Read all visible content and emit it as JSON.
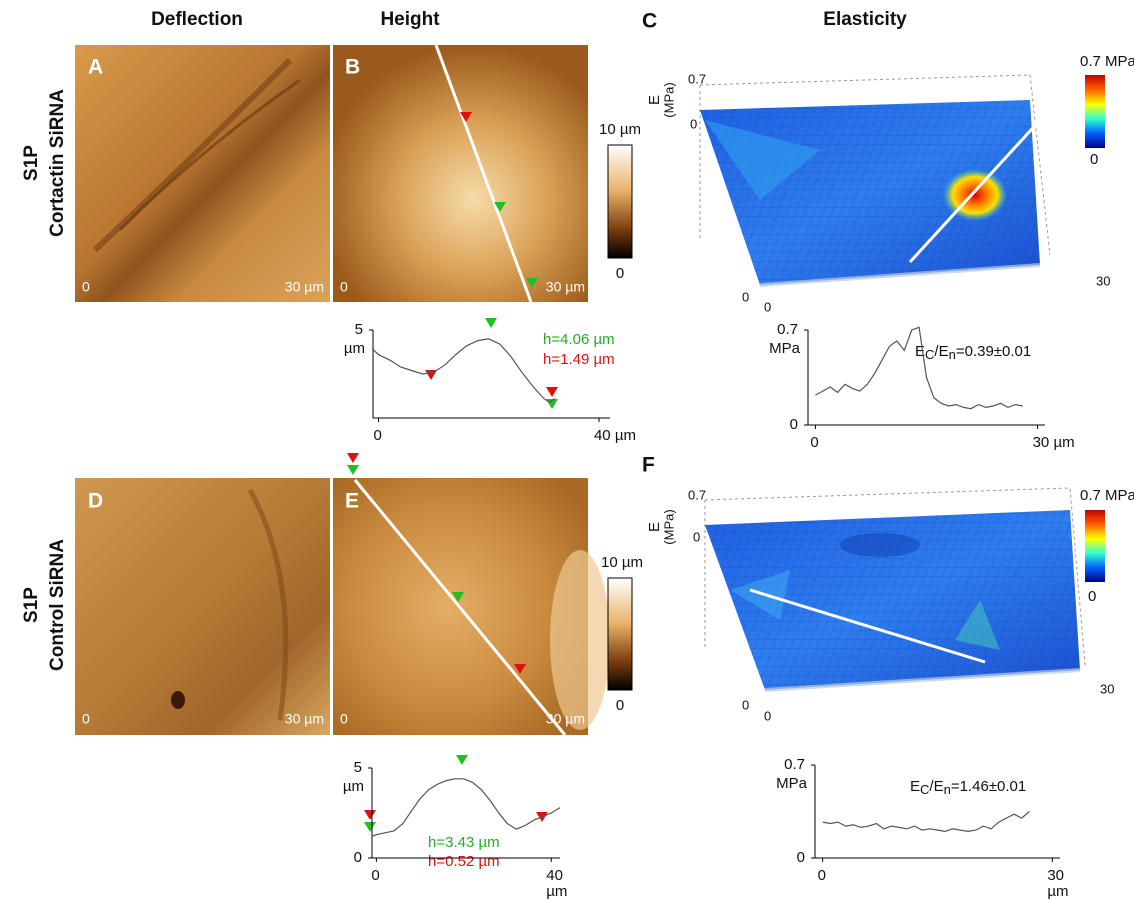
{
  "column_headers": {
    "deflection": "Deflection",
    "height": "Height",
    "elasticity": "Elasticity"
  },
  "rows": [
    {
      "treatment": "S1P",
      "condition": "Cortactin SiRNA",
      "deflection": {
        "letter": "A",
        "origin": "0",
        "scale": "30 µm"
      },
      "height": {
        "letter": "B",
        "origin": "0",
        "scale": "30 µm",
        "colorbar_top": "10 µm",
        "colorbar_bottom": "0"
      },
      "height_profile": {
        "type": "line",
        "color": "#555555",
        "x": [
          -1,
          0,
          2,
          4,
          6,
          8,
          10,
          12,
          14,
          16,
          18,
          20,
          22,
          24,
          26,
          28,
          30,
          31,
          32
        ],
        "values": [
          3.9,
          3.6,
          3.3,
          2.9,
          2.7,
          2.5,
          2.6,
          3.0,
          3.6,
          4.1,
          4.4,
          4.5,
          4.2,
          3.5,
          2.6,
          1.8,
          1.1,
          0.9,
          1.1
        ],
        "xlim": [
          -1,
          42
        ],
        "ylim": [
          0,
          5
        ],
        "xticks": [
          0,
          {
            "value": 40,
            "label": "40 µm"
          }
        ],
        "yticks": [
          5
        ],
        "y_unit": "µm",
        "annotations": [
          "h=4.06 µm",
          "h=1.49 µm"
        ]
      },
      "elasticity": {
        "letter": "C",
        "z_label": "E",
        "z_unit": "(MPa)",
        "z_max": "0.7",
        "z_min": "0",
        "x_min": "0",
        "y_min": "0",
        "x_max": "30",
        "colorbar_top": "0.7 MPa",
        "colorbar_bottom": "0"
      },
      "elasticity_profile": {
        "type": "line",
        "color": "#555555",
        "x": [
          0,
          1,
          2,
          3,
          4,
          5,
          6,
          7,
          8,
          9,
          10,
          11,
          12,
          13,
          14,
          15,
          16,
          17,
          18,
          19,
          20,
          21,
          22,
          23,
          24,
          25,
          26,
          27,
          28
        ],
        "values": [
          0.22,
          0.25,
          0.28,
          0.24,
          0.3,
          0.27,
          0.25,
          0.3,
          0.38,
          0.48,
          0.58,
          0.62,
          0.55,
          0.7,
          0.72,
          0.35,
          0.2,
          0.16,
          0.14,
          0.15,
          0.13,
          0.12,
          0.15,
          0.13,
          0.14,
          0.16,
          0.13,
          0.15,
          0.14
        ],
        "xlim": [
          -1,
          31
        ],
        "ylim": [
          0,
          0.7
        ],
        "xticks": [
          0,
          {
            "value": 30,
            "label": "30 µm"
          }
        ],
        "yticks": [
          0,
          0.7
        ],
        "y_unit": "MPa",
        "ratio": [
          "E",
          "C",
          "/E",
          "n",
          "=0.39±0.01"
        ]
      }
    },
    {
      "treatment": "S1P",
      "condition": "Control SiRNA",
      "deflection": {
        "letter": "D",
        "origin": "0",
        "scale": "30 µm"
      },
      "height": {
        "letter": "E",
        "origin": "0",
        "scale": "30 µm",
        "colorbar_top": "10 µm",
        "colorbar_bottom": "0"
      },
      "height_profile": {
        "type": "line",
        "color": "#555555",
        "x": [
          -1,
          0,
          2,
          4,
          6,
          8,
          10,
          12,
          14,
          16,
          18,
          20,
          22,
          24,
          26,
          28,
          30,
          32,
          34,
          36,
          38,
          40,
          42
        ],
        "values": [
          1.2,
          1.3,
          1.4,
          1.5,
          1.9,
          2.6,
          3.3,
          3.8,
          4.1,
          4.3,
          4.4,
          4.4,
          4.2,
          3.8,
          3.2,
          2.5,
          1.9,
          1.6,
          1.8,
          2.1,
          2.3,
          2.5,
          2.8
        ],
        "xlim": [
          -1,
          42
        ],
        "ylim": [
          0,
          5
        ],
        "xticks": [
          0,
          40
        ],
        "yticks": [
          0,
          5
        ],
        "x_unit": "µm",
        "y_unit": "µm",
        "annotations": [
          "h=3.43 µm",
          "h=0.52 µm"
        ]
      },
      "elasticity": {
        "letter": "F",
        "z_label": "E",
        "z_unit": "(MPa)",
        "z_max": "0.7",
        "z_min": "0",
        "x_min": "0",
        "y_min": "0",
        "x_max": "30",
        "colorbar_top": "0.7 MPa",
        "colorbar_bottom": "0"
      },
      "elasticity_profile": {
        "type": "line",
        "color": "#555555",
        "x": [
          0,
          1,
          2,
          3,
          4,
          5,
          6,
          7,
          8,
          9,
          10,
          11,
          12,
          13,
          14,
          15,
          16,
          17,
          18,
          19,
          20,
          21,
          22,
          23,
          24,
          25,
          26,
          27
        ],
        "values": [
          0.27,
          0.26,
          0.27,
          0.24,
          0.25,
          0.23,
          0.24,
          0.26,
          0.22,
          0.24,
          0.23,
          0.22,
          0.24,
          0.21,
          0.22,
          0.21,
          0.2,
          0.22,
          0.21,
          0.2,
          0.21,
          0.24,
          0.22,
          0.27,
          0.3,
          0.33,
          0.3,
          0.35
        ],
        "xlim": [
          -1,
          31
        ],
        "ylim": [
          0,
          0.7
        ],
        "xticks": [
          0,
          30
        ],
        "yticks": [
          0,
          0.7
        ],
        "x_unit": "µm",
        "y_unit": "MPa",
        "ratio": [
          "E",
          "C",
          "/E",
          "n",
          "=1.46±0.01"
        ]
      }
    }
  ]
}
